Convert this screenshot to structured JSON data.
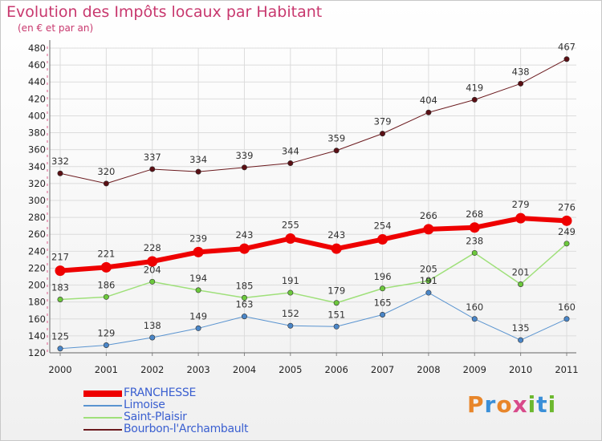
{
  "title": "Evolution des Impôts locaux par Habitant",
  "subtitle": "(en € et par an)",
  "logo": {
    "text": "Proxiti",
    "colors": [
      "#e8862a",
      "#3a8fd8",
      "#e8862a",
      "#d84a8a",
      "#6cb82e",
      "#3a8fd8",
      "#6cb82e"
    ]
  },
  "chart_data": {
    "type": "line",
    "x": [
      "2000",
      "2001",
      "2002",
      "2003",
      "2004",
      "2005",
      "2006",
      "2007",
      "2008",
      "2009",
      "2010",
      "2011"
    ],
    "ylim": [
      120,
      480
    ],
    "yticks": [
      "120",
      "140",
      "160",
      "180",
      "200",
      "220",
      "240",
      "260",
      "280",
      "300",
      "320",
      "340",
      "360",
      "380",
      "400",
      "420",
      "440",
      "460",
      "480"
    ],
    "grid": true,
    "legend_position": "bottom-left",
    "series": [
      {
        "name": "Bourbon-l'Archambault",
        "color": "#6b1a1e",
        "marker_color": "#5a0f14",
        "width": 1,
        "values": [
          332,
          320,
          337,
          334,
          339,
          344,
          359,
          379,
          404,
          419,
          438,
          467
        ],
        "labels": [
          "332",
          "320",
          "337",
          "334",
          "339",
          "344",
          "359",
          "379",
          "404",
          "419",
          "438",
          "467"
        ]
      },
      {
        "name": "Saint-Plaisir",
        "color": "#9fe07a",
        "marker_color": "#6cc83c",
        "width": 1.5,
        "values": [
          183,
          186,
          204,
          194,
          185,
          191,
          179,
          196,
          205,
          238,
          201,
          249
        ],
        "labels": [
          "183",
          "186",
          "204",
          "194",
          "185",
          "191",
          "179",
          "196",
          "205",
          "238",
          "201",
          "249"
        ]
      },
      {
        "name": "Limoise",
        "color": "#5a94d0",
        "marker_color": "#4a86c8",
        "width": 1,
        "values": [
          125,
          129,
          138,
          149,
          163,
          152,
          151,
          165,
          191,
          160,
          135,
          160
        ],
        "labels": [
          "125",
          "129",
          "138",
          "149",
          "163",
          "152",
          "151",
          "165",
          "191",
          "160",
          "135",
          "160"
        ]
      },
      {
        "name": "FRANCHESSE",
        "color": "#ee0000",
        "marker_color": "#ee0000",
        "width": 6,
        "values": [
          217,
          221,
          228,
          239,
          243,
          255,
          243,
          254,
          266,
          268,
          279,
          276
        ],
        "labels": [
          "217",
          "221",
          "228",
          "239",
          "243",
          "255",
          "243",
          "254",
          "266",
          "268",
          "279",
          "276"
        ]
      }
    ],
    "legend": [
      "FRANCHESSE",
      "Limoise",
      "Saint-Plaisir",
      "Bourbon-l'Archambault"
    ]
  }
}
